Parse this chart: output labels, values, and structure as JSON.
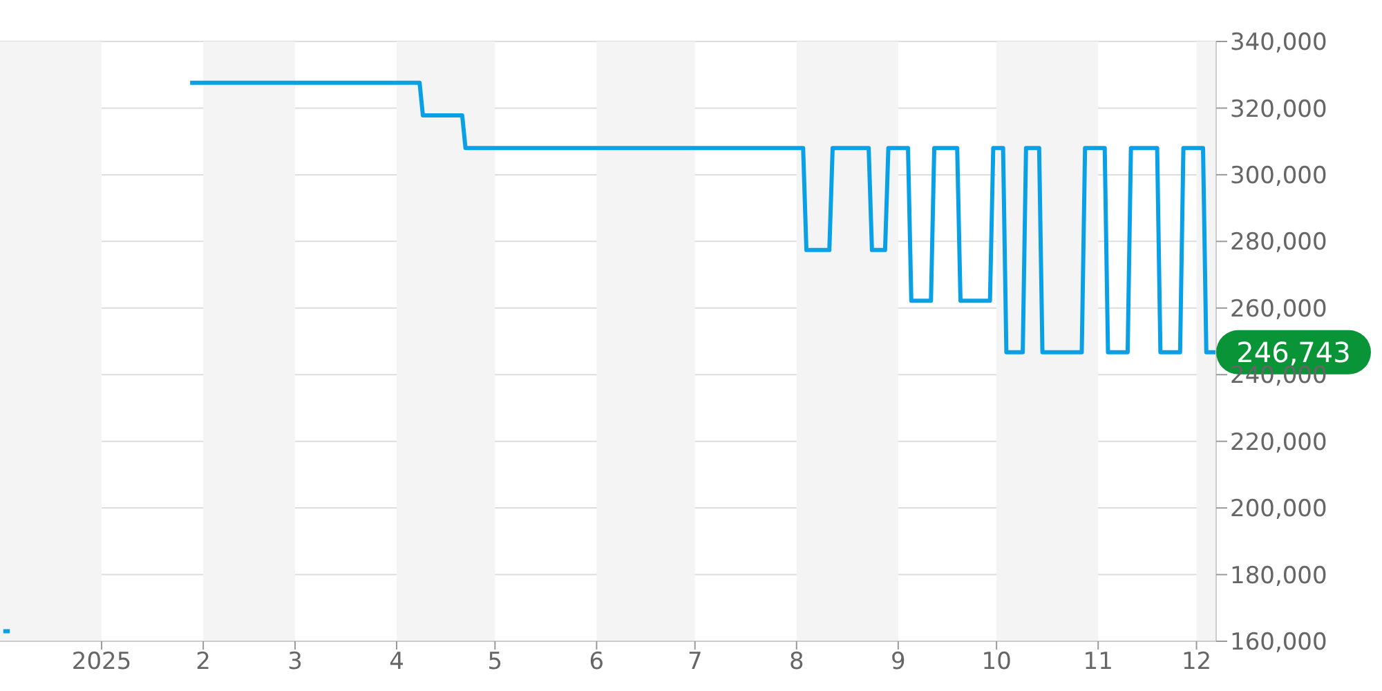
{
  "chart_data": {
    "type": "line",
    "x": [
      "2024-12-02",
      "2024-12-04",
      "2024-12-10",
      "2025-01-28",
      "2025-04-08",
      "2025-04-09",
      "2025-04-21",
      "2025-04-22",
      "2025-08-03",
      "2025-08-04",
      "2025-08-11",
      "2025-08-12",
      "2025-08-23",
      "2025-08-24",
      "2025-08-28",
      "2025-08-29",
      "2025-09-04",
      "2025-09-05",
      "2025-09-11",
      "2025-09-12",
      "2025-09-19",
      "2025-09-20",
      "2025-09-29",
      "2025-09-30",
      "2025-10-03",
      "2025-10-04",
      "2025-10-09",
      "2025-10-10",
      "2025-10-14",
      "2025-10-15",
      "2025-10-27",
      "2025-10-28",
      "2025-11-03",
      "2025-11-04",
      "2025-11-10",
      "2025-11-11",
      "2025-11-19",
      "2025-11-20",
      "2025-11-26",
      "2025-11-27",
      "2025-12-03",
      "2025-12-04",
      "2025-12-07"
    ],
    "series": [
      {
        "color": "#0aa0e6",
        "values": [
          163000,
          163000,
          null,
          327600,
          327600,
          317800,
          317800,
          308000,
          308000,
          277400,
          277400,
          308000,
          308000,
          277400,
          277400,
          308000,
          308000,
          262200,
          262200,
          308000,
          308000,
          262200,
          262200,
          308000,
          308000,
          246743,
          246743,
          308000,
          308000,
          246743,
          246743,
          308000,
          308000,
          246743,
          246743,
          308000,
          308000,
          246743,
          246743,
          308000,
          308000,
          246743,
          246743
        ]
      }
    ],
    "xlim": [
      "2024-12-01",
      "2025-12-07"
    ],
    "xticks": [
      {
        "value": "2025-01-01",
        "label": "2025"
      },
      {
        "value": "2025-02-01",
        "label": "2"
      },
      {
        "value": "2025-03-01",
        "label": "3"
      },
      {
        "value": "2025-04-01",
        "label": "4"
      },
      {
        "value": "2025-05-01",
        "label": "5"
      },
      {
        "value": "2025-06-01",
        "label": "6"
      },
      {
        "value": "2025-07-01",
        "label": "7"
      },
      {
        "value": "2025-08-01",
        "label": "8"
      },
      {
        "value": "2025-09-01",
        "label": "9"
      },
      {
        "value": "2025-10-01",
        "label": "10"
      },
      {
        "value": "2025-11-01",
        "label": "11"
      },
      {
        "value": "2025-12-01",
        "label": "12"
      }
    ],
    "ylim": [
      160000,
      340000
    ],
    "yticks": [
      {
        "value": 160000,
        "label": "160,000"
      },
      {
        "value": 180000,
        "label": "180,000"
      },
      {
        "value": 200000,
        "label": "200,000"
      },
      {
        "value": 220000,
        "label": "220,000"
      },
      {
        "value": 240000,
        "label": "240,000"
      },
      {
        "value": 260000,
        "label": "260,000"
      },
      {
        "value": 280000,
        "label": "280,000"
      },
      {
        "value": 300000,
        "label": "300,000"
      },
      {
        "value": 320000,
        "label": "320,000"
      },
      {
        "value": 340000,
        "label": "340,000"
      }
    ],
    "grid": "y",
    "marker": "none",
    "line_style": "solid",
    "bands": [
      {
        "axis": "x",
        "from": "2024-12-01",
        "to": "2025-01-01",
        "color": "#f4f4f4"
      },
      {
        "axis": "x",
        "from": "2025-02-01",
        "to": "2025-03-01",
        "color": "#f4f4f4"
      },
      {
        "axis": "x",
        "from": "2025-04-01",
        "to": "2025-05-01",
        "color": "#f4f4f4"
      },
      {
        "axis": "x",
        "from": "2025-06-01",
        "to": "2025-07-01",
        "color": "#f4f4f4"
      },
      {
        "axis": "x",
        "from": "2025-08-01",
        "to": "2025-09-01",
        "color": "#f4f4f4"
      },
      {
        "axis": "x",
        "from": "2025-10-01",
        "to": "2025-11-01",
        "color": "#f4f4f4"
      },
      {
        "axis": "x",
        "from": "2025-12-01",
        "to": "2025-12-07",
        "color": "#f4f4f4"
      }
    ],
    "annotations": [
      {
        "text": "246,743",
        "x": "2025-12-07",
        "y": 246743
      }
    ]
  }
}
